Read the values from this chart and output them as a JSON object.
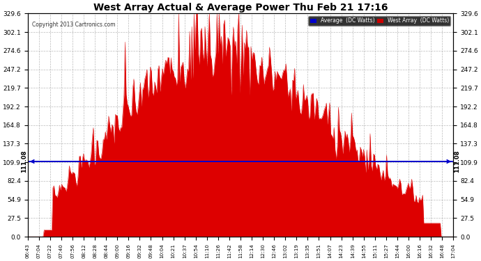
{
  "title": "West Array Actual & Average Power Thu Feb 21 17:16",
  "copyright": "Copyright 2013 Cartronics.com",
  "average_value": 111.08,
  "ymax": 329.6,
  "yticks": [
    0.0,
    27.5,
    54.9,
    82.4,
    109.9,
    137.3,
    164.8,
    192.2,
    219.7,
    247.2,
    274.6,
    302.1,
    329.6
  ],
  "background_color": "#ffffff",
  "fill_color": "#dd0000",
  "line_color": "#0000cc",
  "grid_color": "#aaaaaa",
  "legend_avg_bg": "#0000cc",
  "legend_west_bg": "#cc0000",
  "x_labels": [
    "06:43",
    "07:04",
    "07:22",
    "07:40",
    "07:56",
    "08:12",
    "08:28",
    "08:44",
    "09:00",
    "09:16",
    "09:32",
    "09:48",
    "10:04",
    "10:21",
    "10:37",
    "10:54",
    "11:10",
    "11:26",
    "11:42",
    "11:58",
    "12:14",
    "12:30",
    "12:46",
    "13:02",
    "13:19",
    "13:35",
    "13:51",
    "14:07",
    "14:23",
    "14:39",
    "14:55",
    "15:11",
    "15:27",
    "15:44",
    "16:00",
    "16:16",
    "16:32",
    "16:48",
    "17:04"
  ],
  "n_points": 390
}
